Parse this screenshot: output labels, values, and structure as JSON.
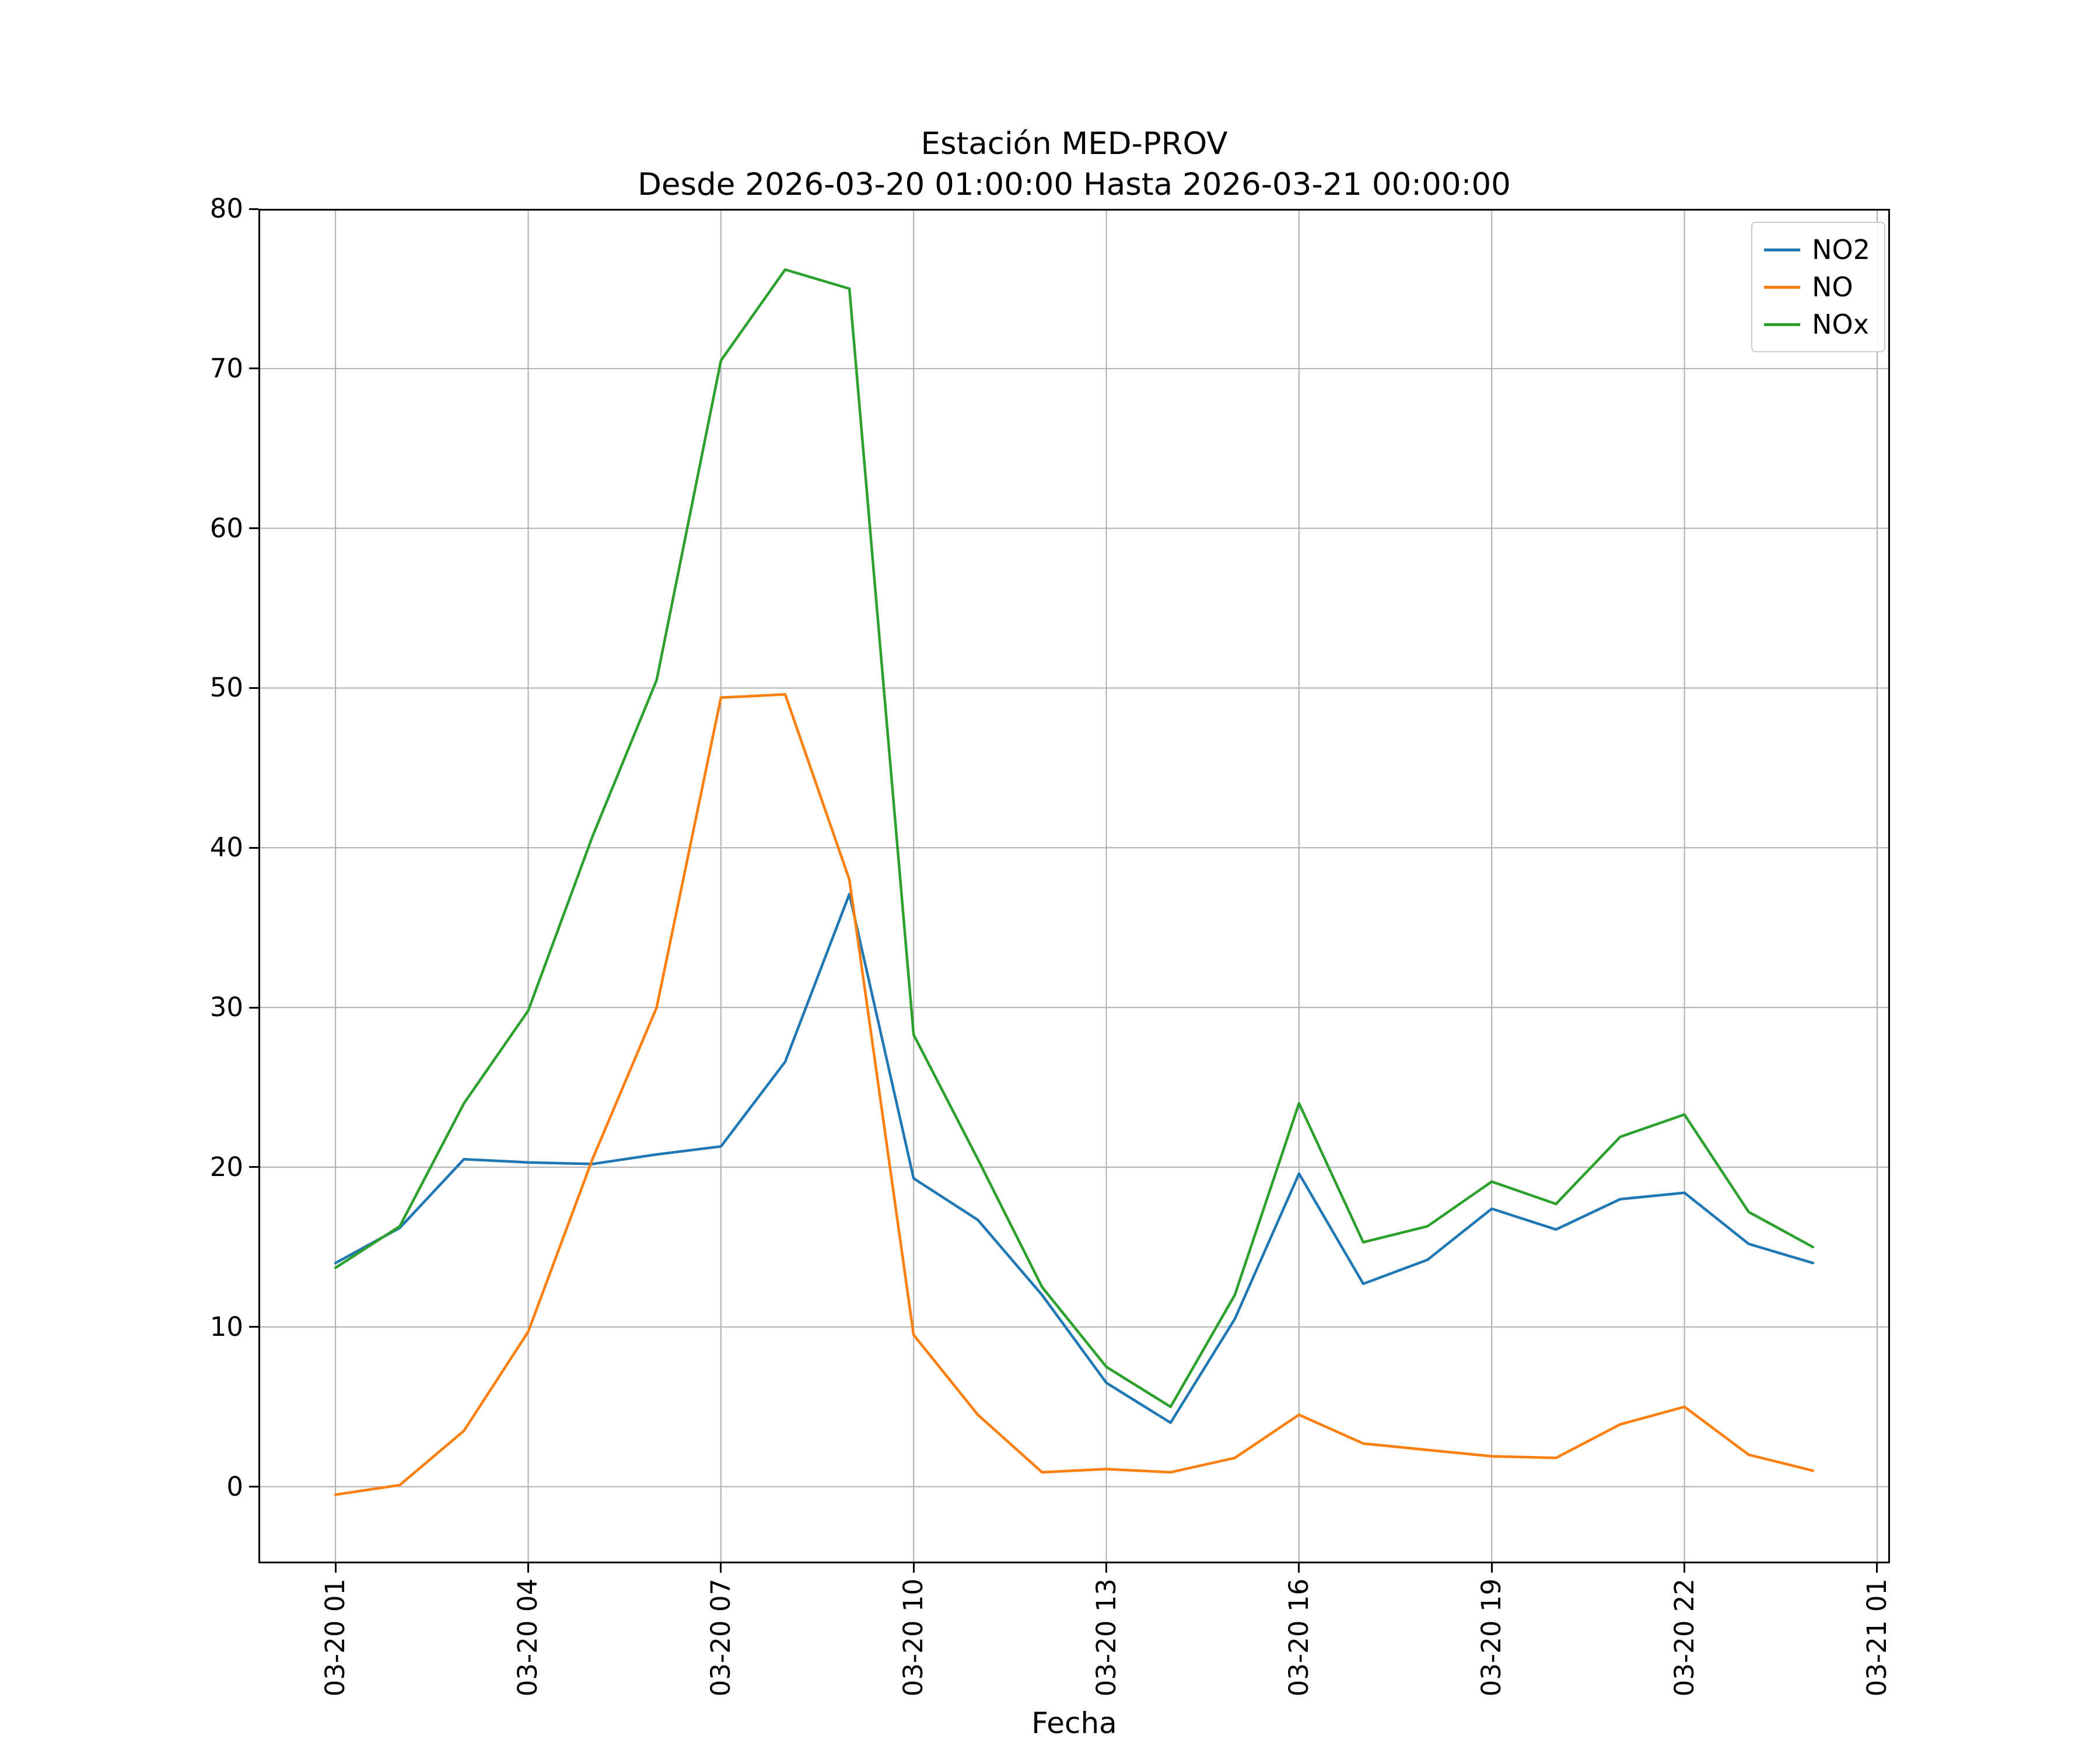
{
  "figure": {
    "title_line1": "Estación MED-PROV",
    "title_line2": "Desde 2026-03-20 01:00:00 Hasta 2026-03-21 00:00:00",
    "xlabel": "Fecha"
  },
  "chart_data": {
    "type": "line",
    "title": "Estación MED-PROV\nDesde 2026-03-20 01:00:00 Hasta 2026-03-21 00:00:00",
    "xlabel": "Fecha",
    "ylabel": "",
    "x": [
      1,
      2,
      3,
      4,
      5,
      6,
      7,
      8,
      9,
      10,
      11,
      12,
      13,
      14,
      15,
      16,
      17,
      18,
      19,
      20,
      21,
      22,
      23,
      24
    ],
    "series": [
      {
        "name": "NO2",
        "color": "#1f77b4",
        "values": [
          14.0,
          16.2,
          20.5,
          20.3,
          20.2,
          20.8,
          21.3,
          26.6,
          37.1,
          19.3,
          16.7,
          12.0,
          6.5,
          4.0,
          10.5,
          19.6,
          12.7,
          14.2,
          17.4,
          16.1,
          18.0,
          18.4,
          15.2,
          14.0
        ]
      },
      {
        "name": "NO",
        "color": "#ff7f0e",
        "values": [
          -0.5,
          0.1,
          3.5,
          9.7,
          20.5,
          30.0,
          49.4,
          49.6,
          38.0,
          9.5,
          4.5,
          0.9,
          1.1,
          0.9,
          1.8,
          4.5,
          2.7,
          2.3,
          1.9,
          1.8,
          3.9,
          5.0,
          2.0,
          1.0
        ]
      },
      {
        "name": "NOx",
        "color": "#2ca02c",
        "values": [
          13.7,
          16.3,
          24.0,
          29.8,
          40.7,
          50.5,
          70.5,
          76.2,
          75.0,
          28.3,
          20.5,
          12.5,
          7.5,
          5.0,
          12.0,
          24.0,
          15.3,
          16.3,
          19.1,
          17.7,
          21.9,
          23.3,
          17.2,
          15.0
        ]
      }
    ],
    "xticks": {
      "positions": [
        1,
        4,
        7,
        10,
        13,
        16,
        19,
        22,
        25
      ],
      "labels": [
        "03-20 01",
        "03-20 04",
        "03-20 07",
        "03-20 10",
        "03-20 13",
        "03-20 16",
        "03-20 19",
        "03-20 22",
        "03-21 01"
      ]
    },
    "yticks": [
      0,
      10,
      20,
      30,
      40,
      50,
      60,
      70,
      80
    ],
    "xlim": [
      -0.2,
      25.2
    ],
    "ylim": [
      -4.8,
      80
    ],
    "grid": true,
    "grid_color": "#b0b0b0",
    "axes_edge_color": "#000000",
    "legend": {
      "position": "upper right",
      "entries": [
        "NO2",
        "NO",
        "NOx"
      ]
    }
  }
}
